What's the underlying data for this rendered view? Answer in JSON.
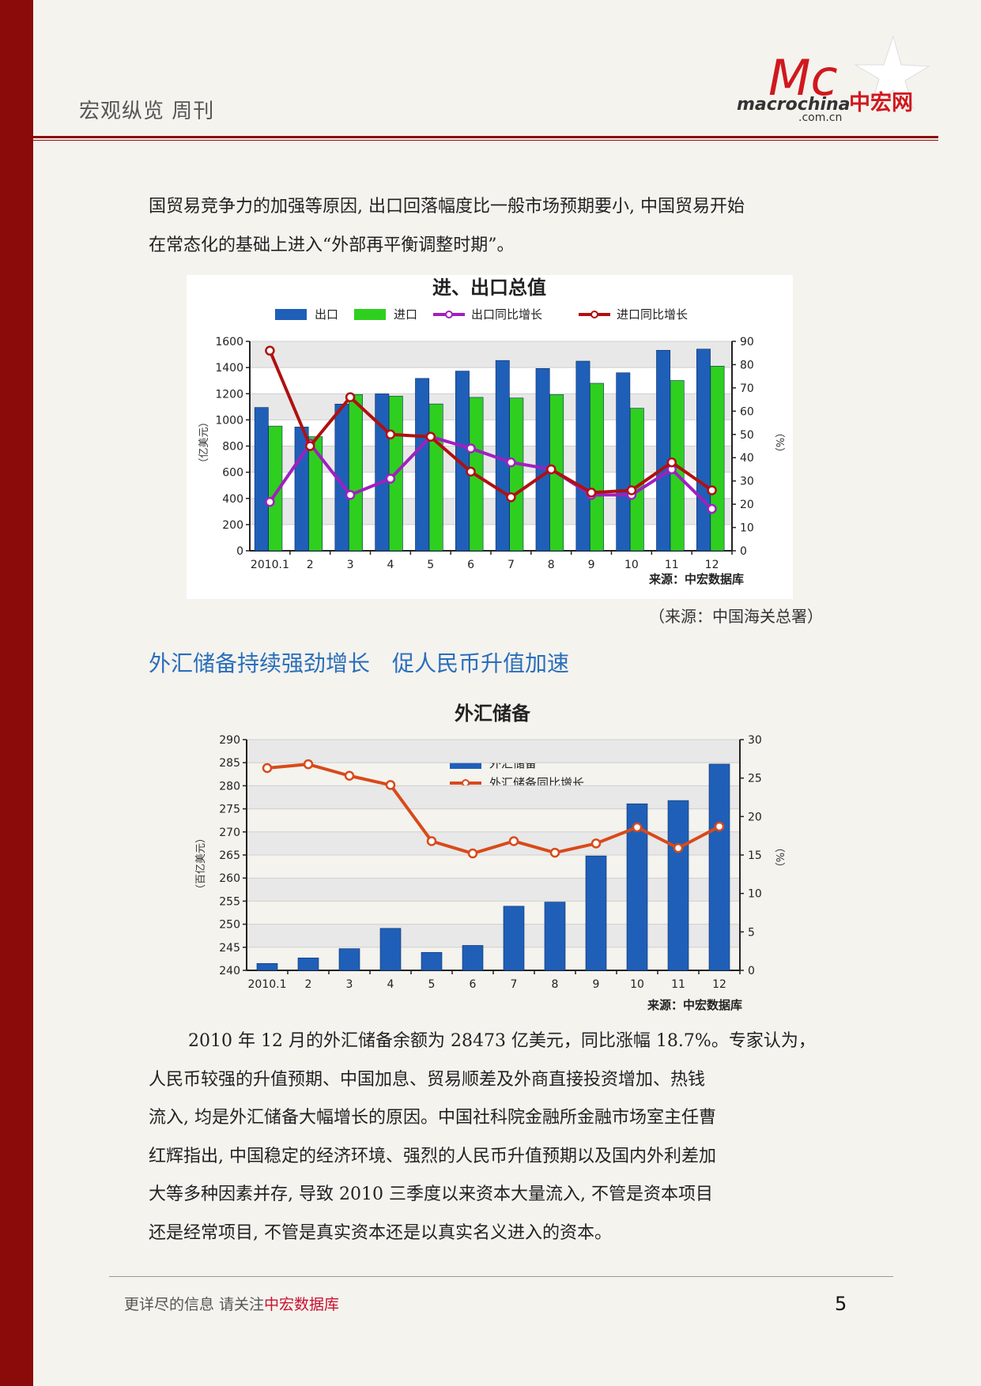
{
  "header": {
    "title": "宏观纵览 周刊",
    "logo_text": "macrochina",
    "logo_sub": ".com.cn",
    "logo_cn": "中宏网",
    "logo_mark": "Mc"
  },
  "paragraph1": {
    "line1": "国贸易竞争力的加强等原因, 出口回落幅度比一般市场预期要小, 中国贸易开始",
    "line2": "在常态化的基础上进入“外部再平衡调整时期”。"
  },
  "source_note": "（来源：中国海关总署）",
  "section_title": "外汇储备持续强劲增长　促人民币升值加速",
  "paragraph2": {
    "lines": [
      "2010 年 12 月的外汇储备余额为 28473 亿美元，同比涨幅 18.7%。专家认为，",
      "人民币较强的升值预期、中国加息、贸易顺差及外商直接投资增加、热钱",
      "流入, 均是外汇储备大幅增长的原因。中国社科院金融所金融市场室主任曹",
      "红辉指出, 中国稳定的经济环境、强烈的人民币升值预期以及国内外利差加",
      "大等多种因素并存, 导致 2010 三季度以来资本大量流入, 不管是资本项目",
      "还是经常项目, 不管是真实资本还是以真实名义进入的资本。"
    ]
  },
  "footer": {
    "text_prefix": "更详尽的信息  请关注",
    "text_highlight": "中宏数据库",
    "page_number": "5"
  },
  "colors": {
    "sidebar": "#8b0a0a",
    "accent_blue": "#2a6ebb",
    "export_bar": "#1f5fb8",
    "import_bar": "#2fcf1f",
    "export_line": "#a020c0",
    "import_line": "#b01010",
    "reserve_line": "#d84a1a"
  },
  "chart_data": [
    {
      "type": "bar",
      "title": "进、出口总值",
      "categories": [
        "2010.1",
        "2",
        "3",
        "4",
        "5",
        "6",
        "7",
        "8",
        "9",
        "10",
        "11",
        "12"
      ],
      "ylabel": "（亿美元）",
      "y2label": "（%）",
      "ylim": [
        0,
        1600
      ],
      "y2lim": [
        0,
        90
      ],
      "yticks": [
        0,
        200,
        400,
        600,
        800,
        1000,
        1200,
        1400,
        1600
      ],
      "y2ticks": [
        0,
        10,
        20,
        30,
        40,
        50,
        60,
        70,
        80,
        90
      ],
      "source": "来源：中宏数据库",
      "grid": true,
      "legend_position": "top",
      "series": [
        {
          "name": "出口",
          "kind": "bar",
          "axis": "left",
          "values": [
            1095,
            946,
            1121,
            1199,
            1317,
            1373,
            1454,
            1393,
            1449,
            1360,
            1532,
            1541
          ]
        },
        {
          "name": "进口",
          "kind": "bar",
          "axis": "left",
          "values": [
            953,
            872,
            1194,
            1182,
            1122,
            1172,
            1167,
            1193,
            1280,
            1089,
            1301,
            1411
          ]
        },
        {
          "name": "出口同比增长",
          "kind": "line",
          "axis": "right",
          "values": [
            21,
            46,
            24,
            31,
            49,
            44,
            38,
            35,
            24,
            24,
            35,
            18
          ]
        },
        {
          "name": "进口同比增长",
          "kind": "line",
          "axis": "right",
          "values": [
            86,
            45,
            66,
            50,
            49,
            34,
            23,
            35,
            25,
            26,
            38,
            26
          ]
        }
      ]
    },
    {
      "type": "bar",
      "title": "外汇储备",
      "categories": [
        "2010.1",
        "2",
        "3",
        "4",
        "5",
        "6",
        "7",
        "8",
        "9",
        "10",
        "11",
        "12"
      ],
      "ylabel": "（百亿美元）",
      "y2label": "（%）",
      "ylim": [
        240,
        290
      ],
      "y2lim": [
        0,
        30
      ],
      "yticks": [
        240,
        245,
        250,
        255,
        260,
        265,
        270,
        275,
        280,
        285,
        290
      ],
      "y2ticks": [
        0,
        5,
        10,
        15,
        20,
        25,
        30
      ],
      "source": "来源：中宏数据库",
      "grid": true,
      "legend_position": "top-center",
      "series": [
        {
          "name": "外汇储备",
          "kind": "bar",
          "axis": "left",
          "values": [
            241.5,
            242.7,
            244.7,
            249.1,
            243.9,
            245.4,
            253.9,
            254.8,
            264.8,
            276.1,
            276.8,
            284.7
          ]
        },
        {
          "name": "外汇储备同比增长",
          "kind": "line",
          "axis": "right",
          "values": [
            26.3,
            26.8,
            25.3,
            24.1,
            16.8,
            15.2,
            16.8,
            15.3,
            16.5,
            18.6,
            15.9,
            18.7
          ]
        }
      ]
    }
  ]
}
